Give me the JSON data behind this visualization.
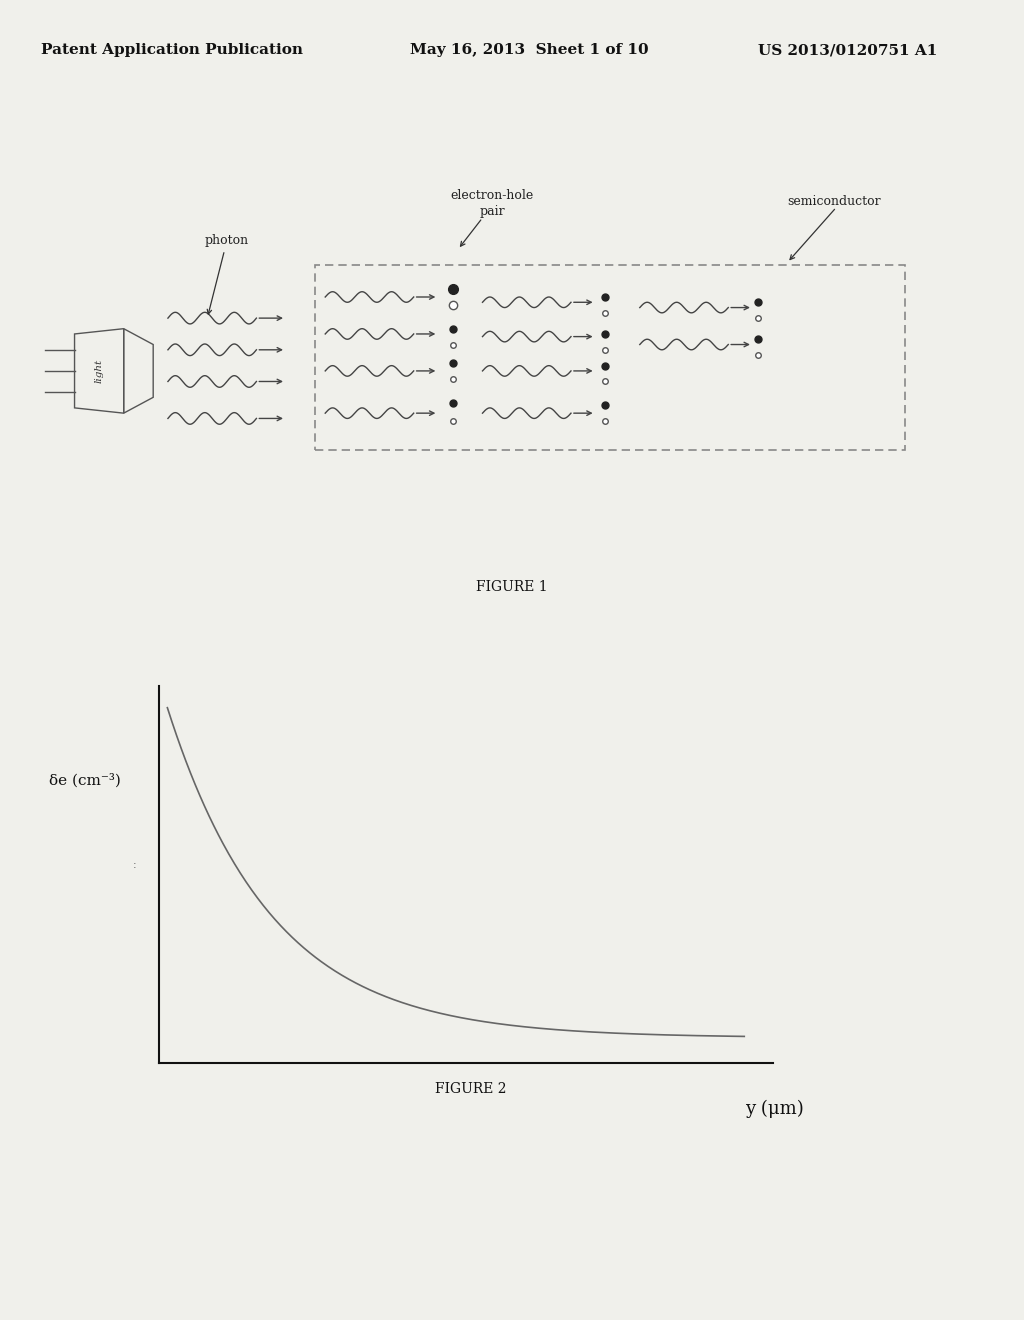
{
  "bg_color": "#f0f0eb",
  "header_text": "Patent Application Publication",
  "header_date": "May 16, 2013  Sheet 1 of 10",
  "header_patent": "US 2013/0120751 A1",
  "fig1_label": "FIGURE 1",
  "fig2_label": "FIGURE 2",
  "fig2_xlabel": "y (μm)",
  "fig2_ylabel": "δe (cm⁻³)",
  "curve_color": "#666666",
  "text_color": "#111111",
  "header_font_size": 11,
  "annotation_font_size": 9.5
}
